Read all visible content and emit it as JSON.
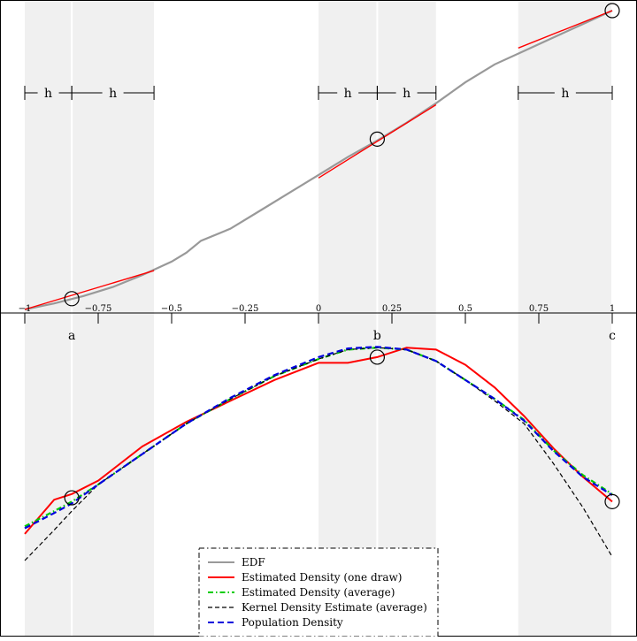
{
  "chart_data": [
    {
      "type": "line",
      "panel": "top",
      "description_role": "empirical distribution function with local linear fits",
      "xlim": [
        -1,
        1
      ],
      "x_ticks": [
        {
          "value": -1,
          "label": "−1"
        },
        {
          "value": -0.75,
          "label": "−0.75"
        },
        {
          "value": -0.5,
          "label": "−0.5"
        },
        {
          "value": -0.25,
          "label": "−0.25"
        },
        {
          "value": 0,
          "label": "0"
        },
        {
          "value": 0.25,
          "label": "0.25"
        },
        {
          "value": 0.5,
          "label": "0.5"
        },
        {
          "value": 0.75,
          "label": "0.75"
        },
        {
          "value": 1,
          "label": "1"
        }
      ],
      "ylim": [
        0,
        1
      ],
      "grid": false,
      "bandwidth_label": "h",
      "bandwidth": 0.2,
      "evaluation_points": [
        {
          "label": "a",
          "x": -0.84
        },
        {
          "label": "b",
          "x": 0.2
        },
        {
          "label": "c",
          "x": 1.0
        }
      ],
      "shaded_bands": [
        {
          "from": -1.0,
          "to": -0.56
        },
        {
          "from": 0.0,
          "to": 0.4
        },
        {
          "from": 0.68,
          "to": 1.0
        }
      ],
      "bandwidth_markers": [
        {
          "from": -1.0,
          "to": -0.84,
          "label": "h"
        },
        {
          "from": -0.84,
          "to": -0.56,
          "label": "h"
        },
        {
          "from": 0.0,
          "to": 0.2,
          "label": "h"
        },
        {
          "from": 0.2,
          "to": 0.4,
          "label": "h"
        },
        {
          "from": 0.68,
          "to": 1.0,
          "label": "h"
        }
      ],
      "series": [
        {
          "name": "EDF",
          "color": "#999999",
          "x": [
            -1.0,
            -0.9,
            -0.8,
            -0.7,
            -0.6,
            -0.5,
            -0.45,
            -0.4,
            -0.3,
            -0.2,
            -0.1,
            0.0,
            0.1,
            0.2,
            0.3,
            0.4,
            0.5,
            0.6,
            0.7,
            0.8,
            0.9,
            1.0
          ],
          "y": [
            0.0,
            0.02,
            0.045,
            0.075,
            0.115,
            0.16,
            0.19,
            0.23,
            0.27,
            0.33,
            0.39,
            0.45,
            0.51,
            0.565,
            0.625,
            0.69,
            0.76,
            0.82,
            0.865,
            0.91,
            0.955,
            1.0
          ]
        },
        {
          "name": "Estimated Density (one draw)",
          "color": "#ff0000",
          "segments": [
            {
              "x": [
                -1.0,
                -0.56
              ],
              "y": [
                0.0,
                0.13
              ]
            },
            {
              "x": [
                0.0,
                0.4
              ],
              "y": [
                0.44,
                0.685
              ]
            },
            {
              "x": [
                0.68,
                1.0
              ],
              "y": [
                0.875,
                1.0
              ]
            }
          ]
        }
      ],
      "markers": [
        {
          "x": -0.84,
          "y": 0.036
        },
        {
          "x": 0.2,
          "y": 0.57
        },
        {
          "x": 1.0,
          "y": 1.0
        }
      ]
    },
    {
      "type": "line",
      "panel": "bottom",
      "xlim": [
        -1,
        1
      ],
      "ylim": [
        0,
        1
      ],
      "grid": false,
      "legend_position": "bottom-center",
      "series": [
        {
          "name": "EDF",
          "color": "#999999",
          "style": "solid",
          "x": [],
          "y": []
        },
        {
          "name": "Estimated Density (one draw)",
          "color": "#ff0000",
          "style": "solid",
          "x": [
            -1.0,
            -0.9,
            -0.84,
            -0.75,
            -0.6,
            -0.45,
            -0.3,
            -0.15,
            0.0,
            0.1,
            0.2,
            0.3,
            0.4,
            0.5,
            0.6,
            0.7,
            0.8,
            0.9,
            1.0
          ],
          "y": [
            0.27,
            0.36,
            0.375,
            0.41,
            0.5,
            0.565,
            0.62,
            0.675,
            0.72,
            0.72,
            0.735,
            0.76,
            0.755,
            0.715,
            0.655,
            0.58,
            0.495,
            0.42,
            0.355
          ]
        },
        {
          "name": "Estimated Density (average)",
          "color": "#00cc00",
          "style": "dash-dot",
          "x": [
            -1.0,
            -0.9,
            -0.84,
            -0.75,
            -0.6,
            -0.45,
            -0.3,
            -0.15,
            0.0,
            0.1,
            0.2,
            0.3,
            0.4,
            0.5,
            0.6,
            0.7,
            0.8,
            0.9,
            1.0
          ],
          "y": [
            0.29,
            0.33,
            0.355,
            0.4,
            0.48,
            0.56,
            0.625,
            0.685,
            0.73,
            0.755,
            0.76,
            0.755,
            0.725,
            0.675,
            0.625,
            0.57,
            0.49,
            0.425,
            0.375
          ]
        },
        {
          "name": "Kernel Density Estimate (average)",
          "color": "#000000",
          "style": "dashed-thin",
          "x": [
            -1.0,
            -0.9,
            -0.84,
            -0.75,
            -0.6,
            -0.45,
            -0.3,
            -0.15,
            0.0,
            0.1,
            0.2,
            0.3,
            0.4,
            0.5,
            0.6,
            0.7,
            0.8,
            0.9,
            1.0
          ],
          "y": [
            0.2,
            0.28,
            0.33,
            0.4,
            0.48,
            0.56,
            0.625,
            0.685,
            0.73,
            0.755,
            0.76,
            0.755,
            0.725,
            0.675,
            0.62,
            0.56,
            0.455,
            0.34,
            0.21
          ]
        },
        {
          "name": "Population Density",
          "color": "#0000dd",
          "style": "dashed",
          "x": [
            -1.0,
            -0.9,
            -0.84,
            -0.75,
            -0.6,
            -0.45,
            -0.3,
            -0.15,
            0.0,
            0.1,
            0.2,
            0.3,
            0.4,
            0.5,
            0.6,
            0.7,
            0.8,
            0.9,
            1.0
          ],
          "y": [
            0.285,
            0.325,
            0.35,
            0.4,
            0.48,
            0.56,
            0.628,
            0.688,
            0.735,
            0.758,
            0.762,
            0.755,
            0.725,
            0.675,
            0.625,
            0.568,
            0.488,
            0.42,
            0.372
          ]
        }
      ],
      "markers": [
        {
          "x": -0.84,
          "y": 0.365
        },
        {
          "x": 0.2,
          "y": 0.735
        },
        {
          "x": 1.0,
          "y": 0.355
        }
      ]
    }
  ]
}
